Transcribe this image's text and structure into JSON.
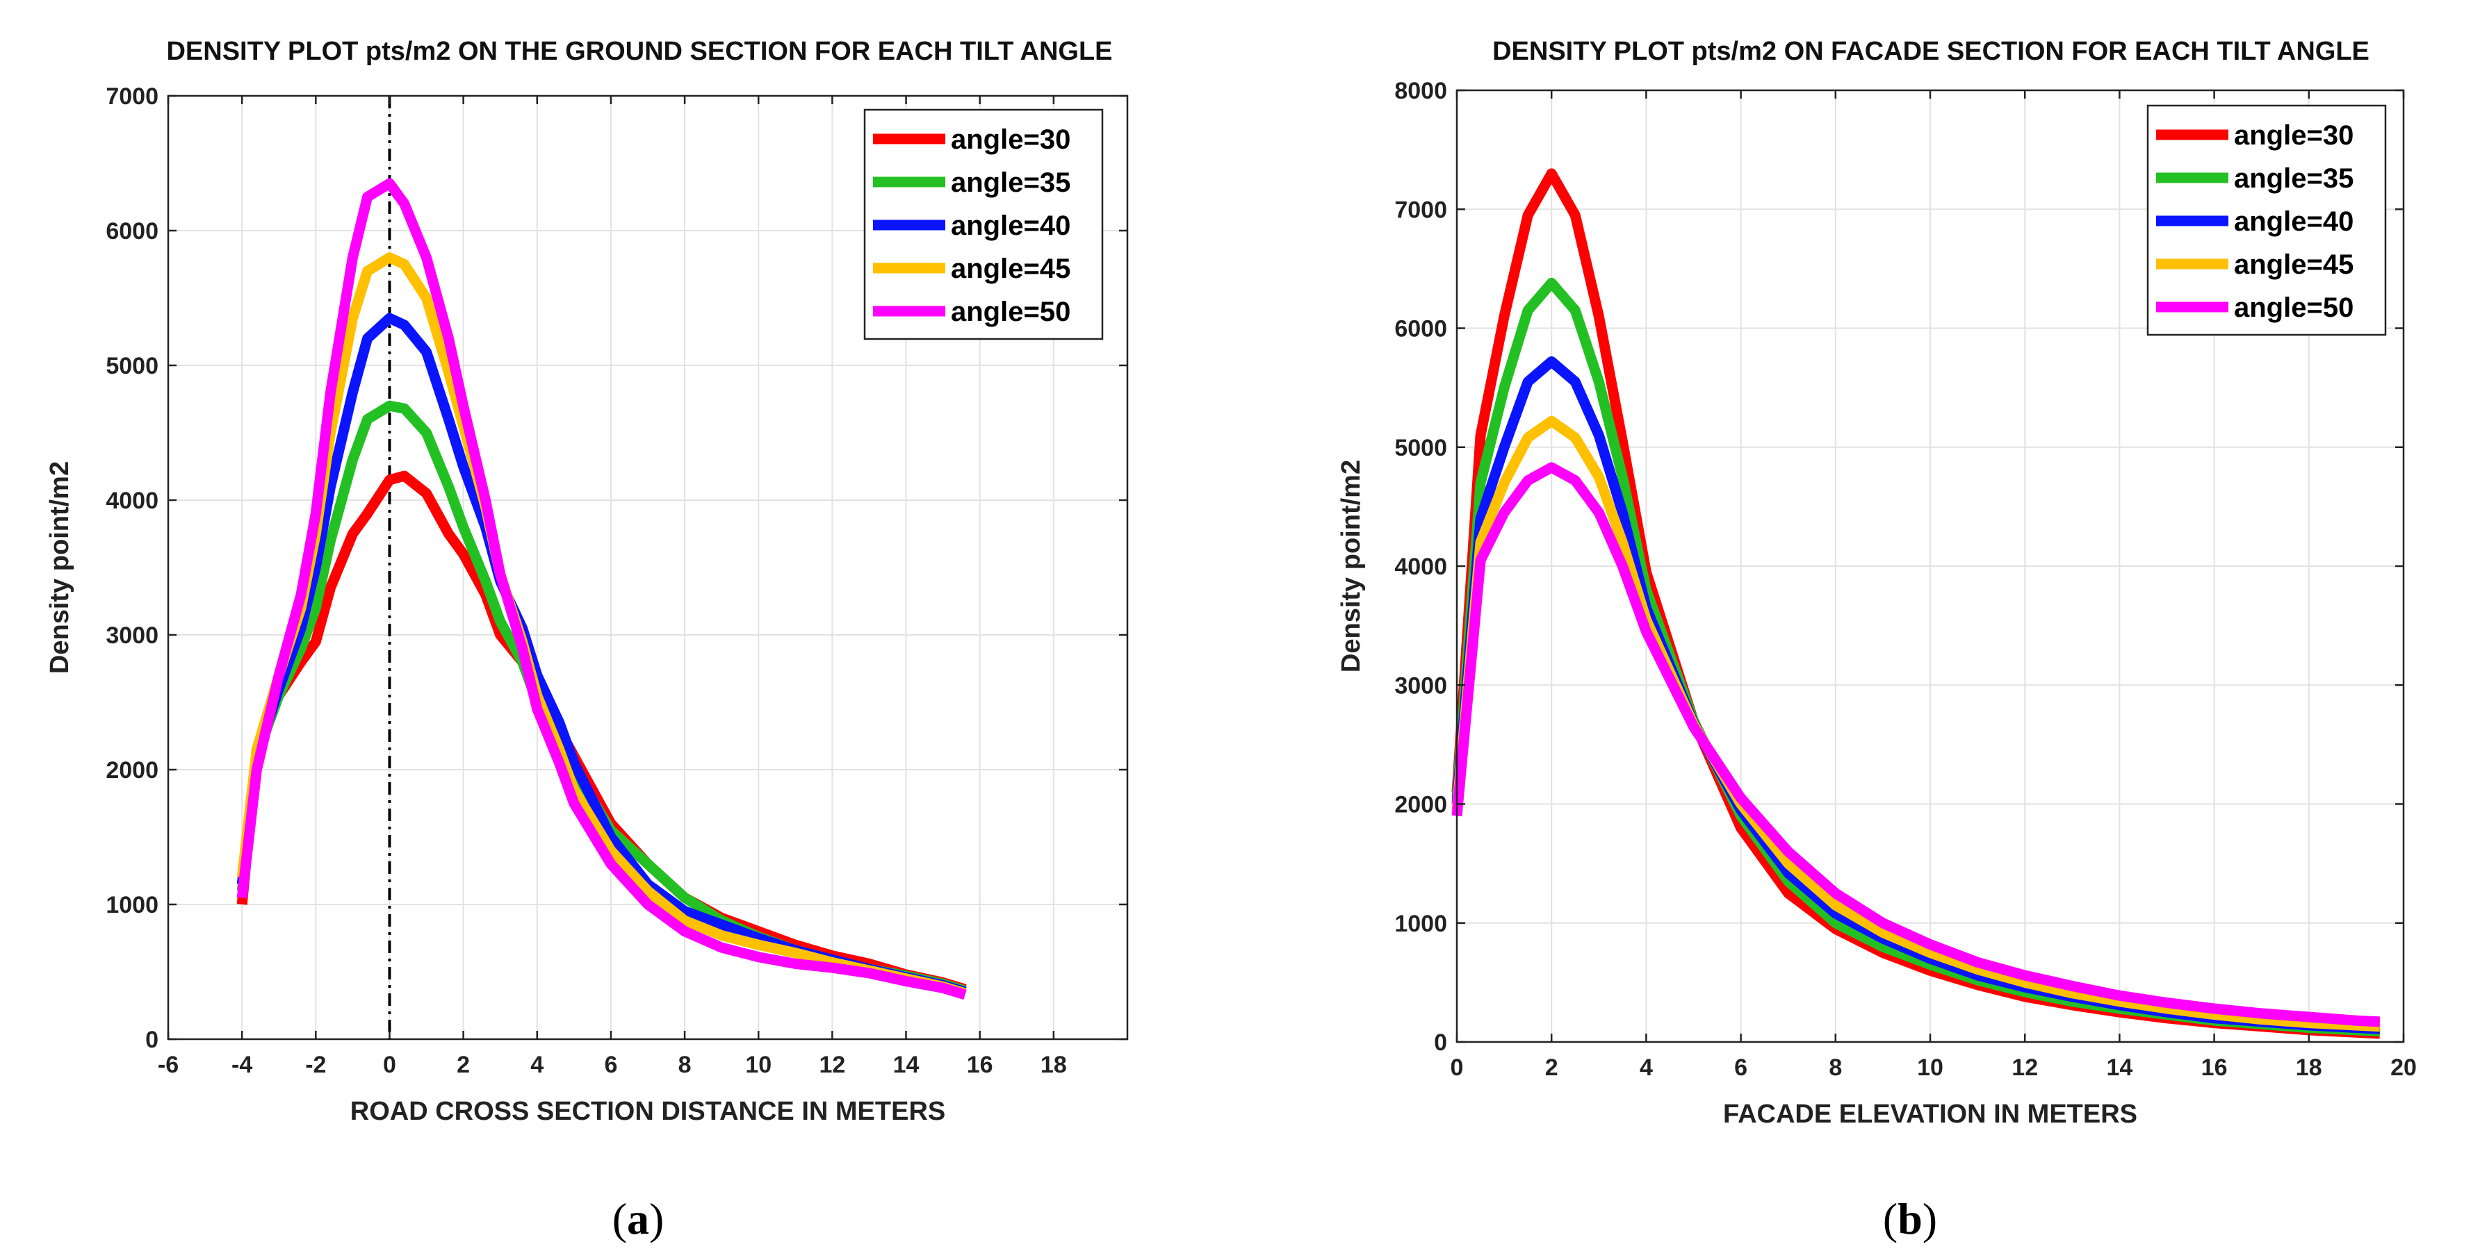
{
  "chart_data": [
    {
      "type": "line",
      "title": "DENSITY PLOT pts/m2 ON THE GROUND SECTION FOR EACH TILT ANGLE",
      "xlabel": "ROAD CROSS SECTION DISTANCE IN METERS",
      "ylabel": "Density point/m2",
      "xlim": [
        -6,
        20
      ],
      "ylim": [
        0,
        7000
      ],
      "xticks": [
        -6,
        -4,
        -2,
        0,
        2,
        4,
        6,
        8,
        10,
        12,
        14,
        16,
        18
      ],
      "yticks": [
        0,
        1000,
        2000,
        3000,
        4000,
        5000,
        6000,
        7000
      ],
      "grid": true,
      "legend_position": "top-right",
      "vline_x": 0,
      "caption_open": "(",
      "caption_letter": "a",
      "caption_close": ")",
      "x": [
        -4,
        -3.6,
        -3,
        -2.4,
        -2,
        -1.6,
        -1,
        -0.6,
        0,
        0.4,
        1,
        1.6,
        2,
        2.6,
        3,
        3.6,
        4,
        4.6,
        5,
        6,
        7,
        8,
        9,
        10,
        11,
        12,
        13,
        14,
        15,
        15.6
      ],
      "series": [
        {
          "name": "angle=30",
          "color": "#ff0000",
          "values": [
            1000,
            2150,
            2550,
            2800,
            2950,
            3350,
            3750,
            3900,
            4150,
            4180,
            4050,
            3750,
            3600,
            3300,
            3000,
            2800,
            2550,
            2300,
            2100,
            1600,
            1300,
            1050,
            900,
            800,
            700,
            620,
            560,
            480,
            420,
            370
          ]
        },
        {
          "name": "angle=35",
          "color": "#22c022",
          "values": [
            1100,
            2100,
            2550,
            2900,
            3200,
            3700,
            4300,
            4600,
            4700,
            4680,
            4500,
            4100,
            3800,
            3400,
            3100,
            2800,
            2500,
            2200,
            2000,
            1550,
            1300,
            1050,
            880,
            760,
            660,
            590,
            520,
            470,
            410,
            360
          ]
        },
        {
          "name": "angle=40",
          "color": "#0a14ff",
          "values": [
            1150,
            2100,
            2600,
            3050,
            3500,
            4100,
            4800,
            5200,
            5350,
            5300,
            5100,
            4600,
            4250,
            3800,
            3400,
            3050,
            2700,
            2350,
            2050,
            1500,
            1150,
            950,
            850,
            750,
            660,
            590,
            520,
            460,
            400,
            350
          ]
        },
        {
          "name": "angle=45",
          "color": "#ffc000",
          "values": [
            1200,
            2150,
            2700,
            3200,
            3750,
            4500,
            5350,
            5700,
            5800,
            5750,
            5500,
            4950,
            4550,
            3950,
            3450,
            2950,
            2550,
            2150,
            1850,
            1400,
            1100,
            880,
            770,
            700,
            640,
            570,
            510,
            450,
            390,
            340
          ]
        },
        {
          "name": "angle=50",
          "color": "#ff00ff",
          "values": [
            1050,
            2000,
            2700,
            3300,
            3900,
            4800,
            5800,
            6250,
            6350,
            6200,
            5800,
            5200,
            4700,
            4000,
            3450,
            2900,
            2450,
            2050,
            1750,
            1300,
            1000,
            800,
            680,
            610,
            560,
            530,
            490,
            430,
            380,
            330
          ]
        }
      ]
    },
    {
      "type": "line",
      "title": "DENSITY PLOT pts/m2 ON FACADE SECTION FOR EACH TILT ANGLE",
      "xlabel": "FACADE ELEVATION IN METERS",
      "ylabel": "Density point/m2",
      "xlim": [
        0,
        20
      ],
      "ylim": [
        0,
        8000
      ],
      "xticks": [
        0,
        2,
        4,
        6,
        8,
        10,
        12,
        14,
        16,
        18,
        20
      ],
      "yticks": [
        0,
        1000,
        2000,
        3000,
        4000,
        5000,
        6000,
        7000,
        8000
      ],
      "grid": true,
      "legend_position": "top-right",
      "caption_open": "(",
      "caption_letter": "b",
      "caption_close": ")",
      "x": [
        0,
        0.5,
        1,
        1.5,
        2,
        2.5,
        3,
        3.5,
        4,
        5,
        6,
        7,
        8,
        9,
        10,
        11,
        12,
        13,
        14,
        15,
        16,
        17,
        18,
        19,
        19.5
      ],
      "series": [
        {
          "name": "angle=30",
          "color": "#ff0000",
          "values": [
            2100,
            5100,
            6100,
            6950,
            7300,
            6950,
            6100,
            5050,
            3950,
            2700,
            1800,
            1250,
            950,
            750,
            600,
            480,
            380,
            310,
            250,
            200,
            160,
            130,
            100,
            80,
            70
          ]
        },
        {
          "name": "angle=35",
          "color": "#22c022",
          "values": [
            2050,
            4700,
            5500,
            6150,
            6380,
            6150,
            5550,
            4750,
            3800,
            2700,
            1900,
            1350,
            1000,
            800,
            650,
            520,
            420,
            340,
            280,
            230,
            180,
            150,
            120,
            100,
            90
          ]
        },
        {
          "name": "angle=40",
          "color": "#0a14ff",
          "values": [
            2000,
            4400,
            5000,
            5550,
            5720,
            5550,
            5100,
            4450,
            3650,
            2680,
            1950,
            1420,
            1080,
            870,
            700,
            560,
            460,
            380,
            310,
            250,
            200,
            170,
            140,
            120,
            110
          ]
        },
        {
          "name": "angle=45",
          "color": "#ffc000",
          "values": [
            1950,
            4200,
            4700,
            5080,
            5220,
            5080,
            4750,
            4200,
            3550,
            2670,
            2000,
            1500,
            1150,
            920,
            750,
            610,
            500,
            410,
            340,
            280,
            230,
            190,
            160,
            140,
            130
          ]
        },
        {
          "name": "angle=50",
          "color": "#ff00ff",
          "values": [
            1900,
            4050,
            4450,
            4720,
            4830,
            4720,
            4450,
            4000,
            3450,
            2650,
            2050,
            1600,
            1250,
            1000,
            820,
            670,
            560,
            470,
            390,
            330,
            280,
            240,
            210,
            180,
            170
          ]
        }
      ]
    }
  ]
}
